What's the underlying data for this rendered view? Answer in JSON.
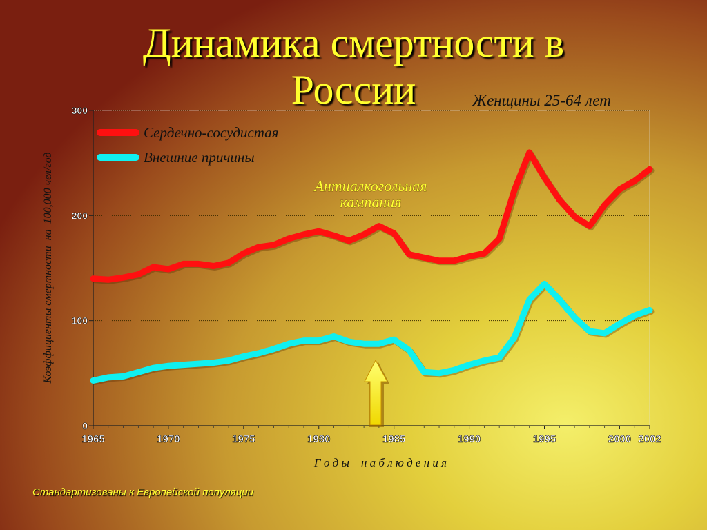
{
  "slide": {
    "title_line1": "Динамика смертности в",
    "title_line2": "России",
    "subtitle": "Женщины 25-64 лет",
    "footnote": "Стандартизованы к Европейской популяции"
  },
  "chart_data": {
    "type": "line",
    "title": "Динамика смертности в России",
    "subtitle": "Женщины 25-64 лет",
    "xlabel": "Г о д ы    н а б л ю д е н и я",
    "ylabel": "Коэффициенты смертности  на  100,000 чел/год",
    "xlim": [
      1965,
      2002
    ],
    "ylim": [
      0,
      300
    ],
    "x_ticks": [
      1965,
      1970,
      1975,
      1980,
      1985,
      1990,
      1995,
      2000,
      2002
    ],
    "y_ticks": [
      0,
      100,
      200,
      300
    ],
    "grid": "horizontal dotted",
    "legend_position": "top-left",
    "series": [
      {
        "name": "Сердечно-сосудистая",
        "color": "#ff1010",
        "x": [
          1965,
          1966,
          1967,
          1968,
          1969,
          1970,
          1971,
          1972,
          1973,
          1974,
          1975,
          1976,
          1977,
          1978,
          1979,
          1980,
          1981,
          1982,
          1983,
          1984,
          1985,
          1986,
          1987,
          1988,
          1989,
          1990,
          1991,
          1992,
          1993,
          1994,
          1995,
          1996,
          1997,
          1998,
          1999,
          2000,
          2001,
          2002
        ],
        "values": [
          140,
          139,
          141,
          144,
          151,
          149,
          154,
          154,
          152,
          155,
          164,
          170,
          172,
          178,
          182,
          185,
          181,
          176,
          182,
          190,
          183,
          163,
          160,
          157,
          157,
          161,
          164,
          178,
          224,
          260,
          236,
          215,
          199,
          190,
          210,
          225,
          233,
          244
        ]
      },
      {
        "name": "Внешние причины",
        "color": "#10f0f0",
        "x": [
          1965,
          1966,
          1967,
          1968,
          1969,
          1970,
          1971,
          1972,
          1973,
          1974,
          1975,
          1976,
          1977,
          1978,
          1979,
          1980,
          1981,
          1982,
          1983,
          1984,
          1985,
          1986,
          1987,
          1988,
          1989,
          1990,
          1991,
          1992,
          1993,
          1994,
          1995,
          1996,
          1997,
          1998,
          1999,
          2000,
          2001,
          2002
        ],
        "values": [
          43,
          46,
          47,
          51,
          55,
          57,
          58,
          59,
          60,
          62,
          66,
          69,
          73,
          78,
          81,
          81,
          85,
          80,
          78,
          78,
          82,
          72,
          51,
          50,
          53,
          58,
          62,
          65,
          84,
          120,
          135,
          120,
          103,
          90,
          88,
          97,
          105,
          110
        ]
      }
    ],
    "annotations": [
      {
        "text": "Антиалкогольная кампания",
        "x": 1985
      },
      {
        "text": "arrow pointing up at 1985",
        "x": 1985
      }
    ]
  },
  "labels": {
    "annotation_line1": "Антиалкогольная",
    "annotation_line2": "кампания"
  }
}
